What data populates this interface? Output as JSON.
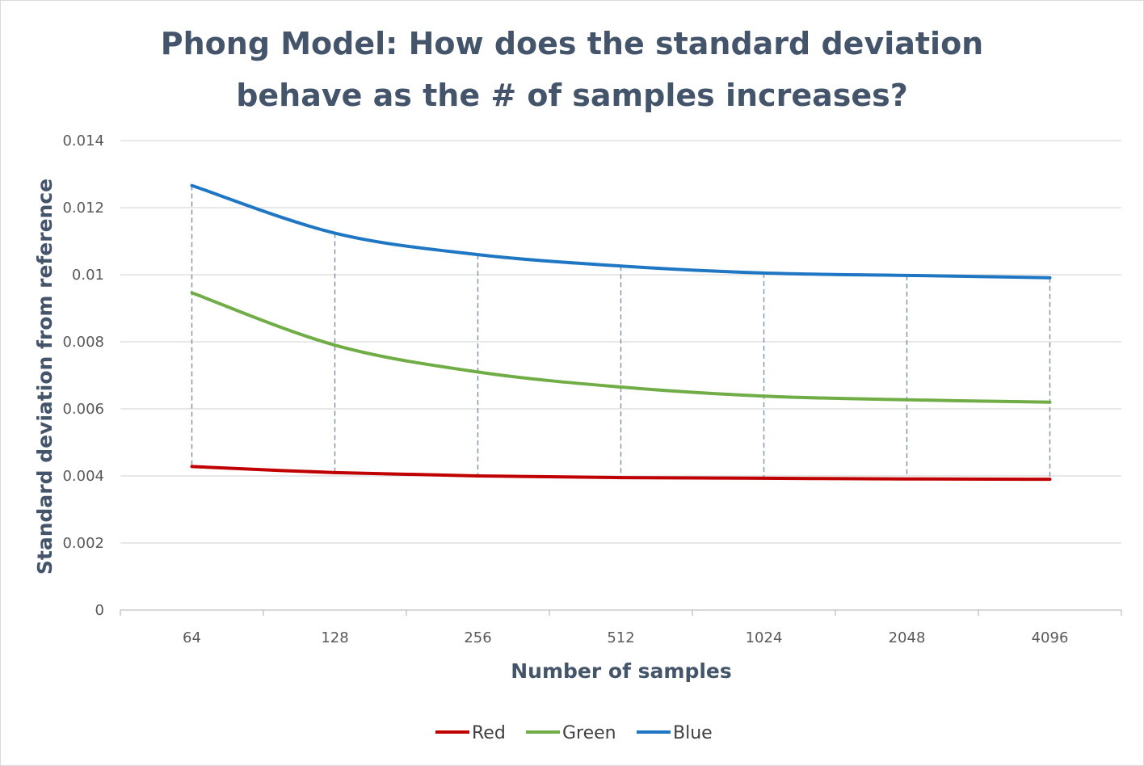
{
  "chart_data": {
    "type": "line",
    "title_lines": [
      "Phong Model: How does the standard deviation",
      "behave as the # of samples increases?"
    ],
    "xlabel": "Number of samples",
    "ylabel": "Standard deviation from reference",
    "categories": [
      "64",
      "128",
      "256",
      "512",
      "1024",
      "2048",
      "4096"
    ],
    "ylim": [
      0,
      0.014
    ],
    "yticks": [
      0,
      0.002,
      0.004,
      0.006,
      0.008,
      0.01,
      0.012,
      0.014
    ],
    "ytick_labels": [
      "0",
      "0.002",
      "0.004",
      "0.006",
      "0.008",
      "0.01",
      "0.012",
      "0.014"
    ],
    "grid": true,
    "drop_lines": true,
    "legend_position": "bottom",
    "series": [
      {
        "name": "Red",
        "color": "#c00000",
        "values": [
          0.00428,
          0.0041,
          0.004,
          0.00395,
          0.00393,
          0.00391,
          0.0039
        ]
      },
      {
        "name": "Green",
        "color": "#70ad47",
        "values": [
          0.00946,
          0.0079,
          0.0071,
          0.00665,
          0.00638,
          0.00627,
          0.0062
        ]
      },
      {
        "name": "Blue",
        "color": "#1f77c4",
        "values": [
          0.01266,
          0.01124,
          0.0106,
          0.01026,
          0.01005,
          0.00998,
          0.00991
        ]
      }
    ]
  }
}
